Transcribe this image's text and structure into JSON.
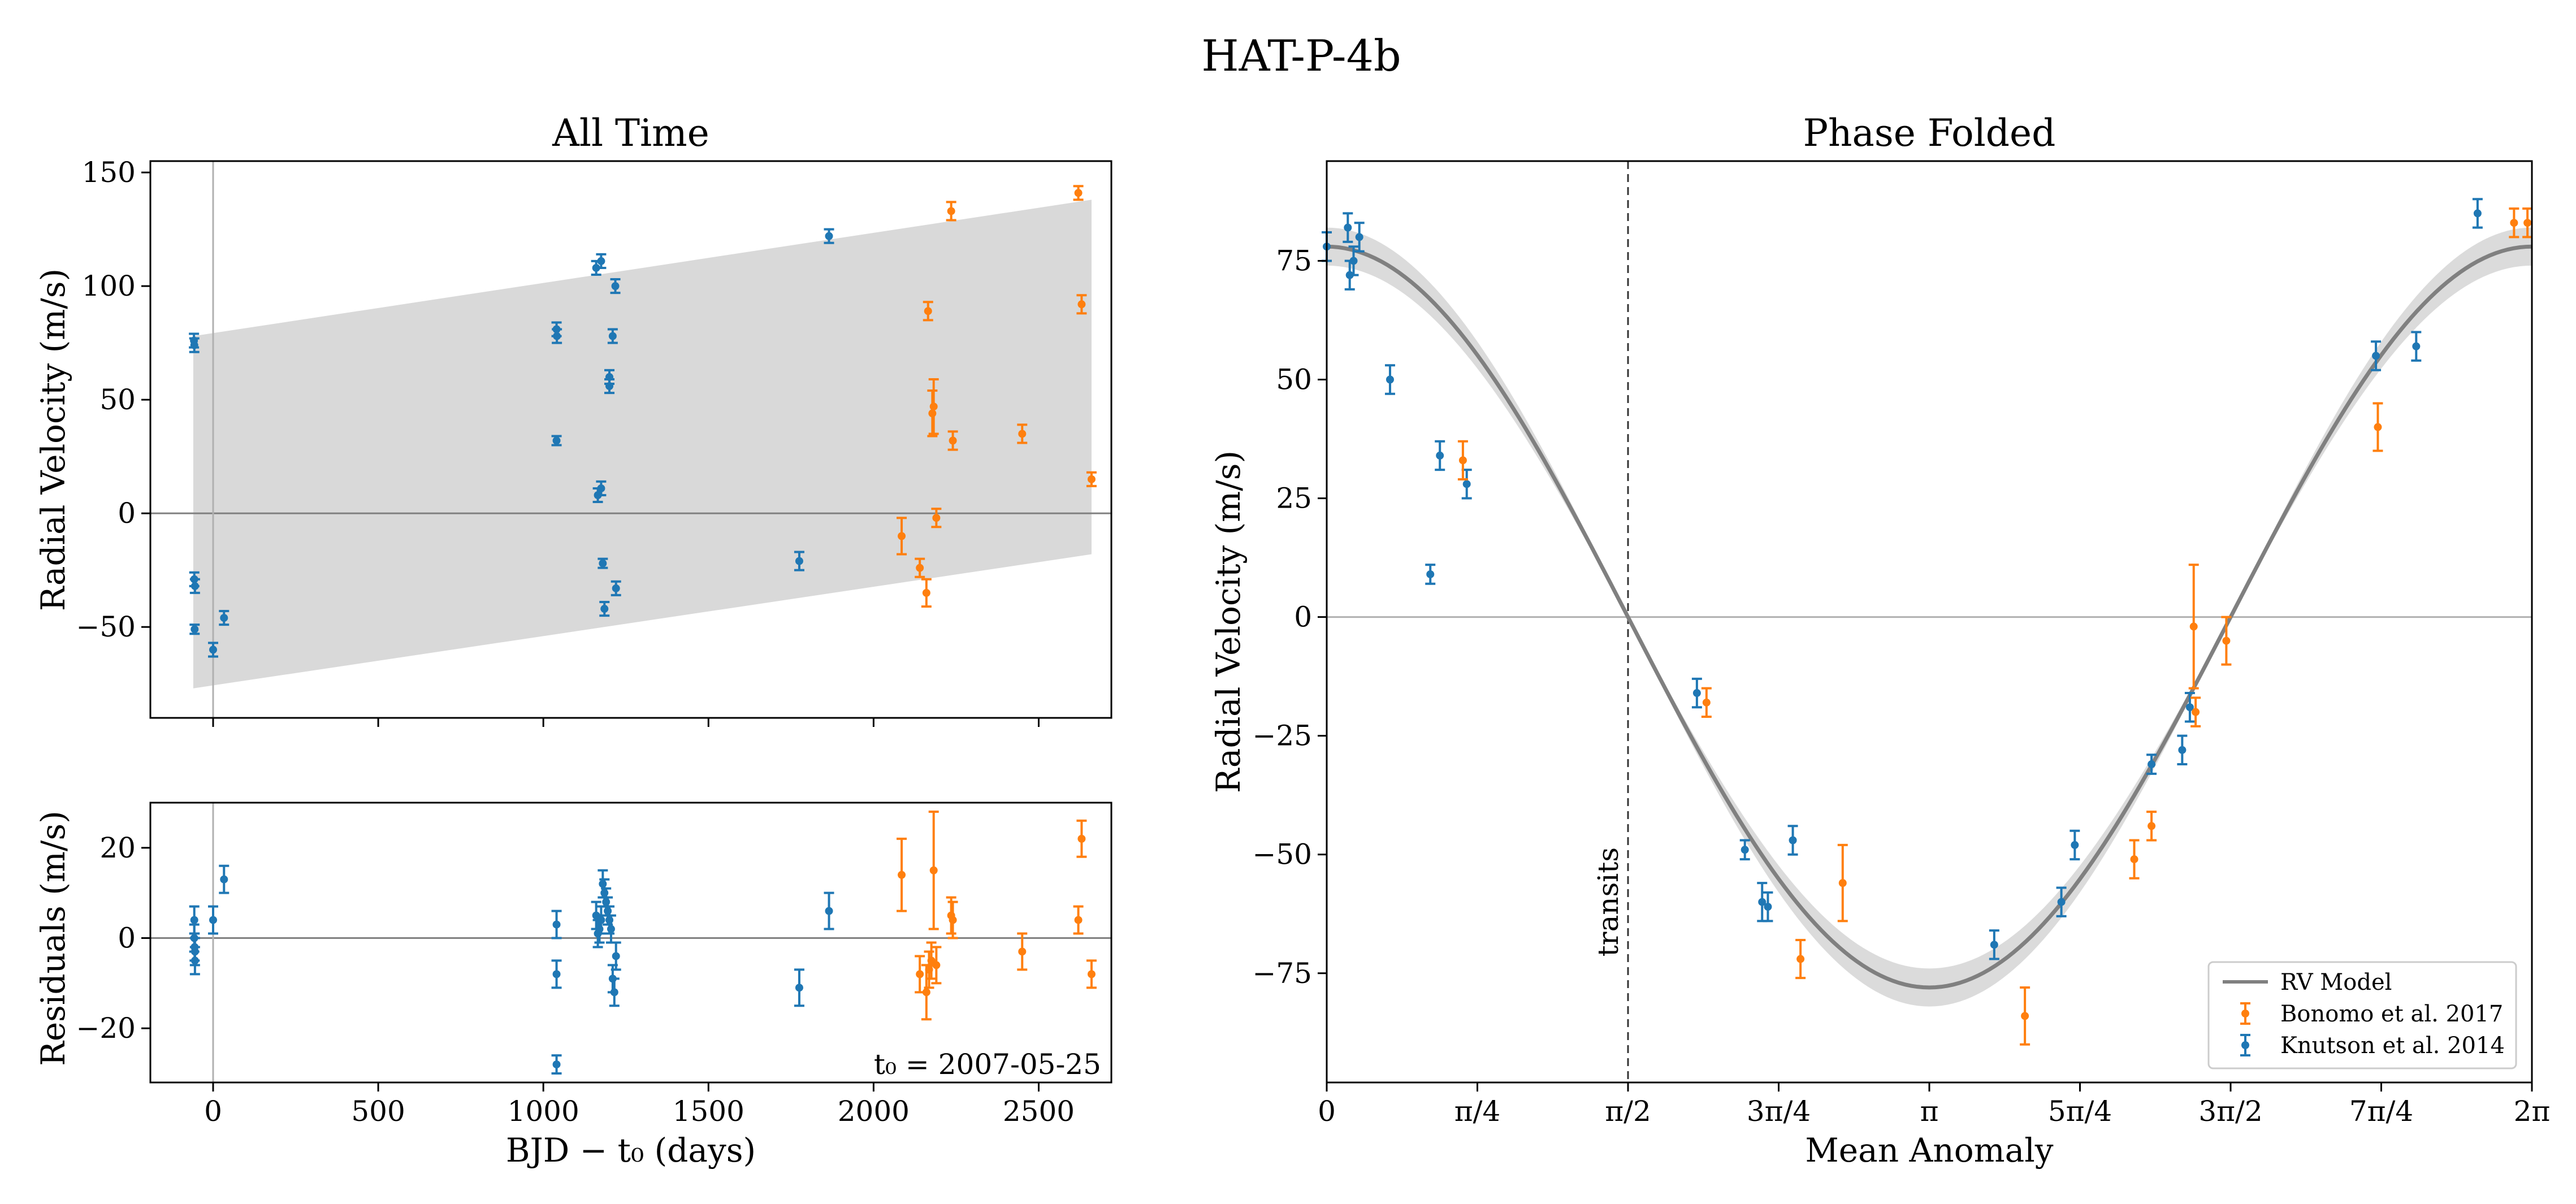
{
  "figure": {
    "suptitle": "HAT-P-4b",
    "colors": {
      "knutson": "#1f77b4",
      "bonomo": "#ff7f0e",
      "model": "#808080",
      "band": "#d9d9d9",
      "zero_line": "#808080"
    }
  },
  "chart_data": [
    {
      "id": "all_time",
      "type": "scatter",
      "title": "All Time",
      "xlabel": "",
      "ylabel": "Radial Velocity (m/s)",
      "xlim": [
        -190,
        2720
      ],
      "ylim": [
        -90,
        155
      ],
      "xticks": [
        0,
        500,
        1000,
        1500,
        2000,
        2500
      ],
      "yticks": [
        -50,
        0,
        50,
        100,
        150
      ],
      "ytick_labels": [
        "−50",
        "0",
        "50",
        "100",
        "150"
      ],
      "band": {
        "x": [
          -60,
          2660
        ],
        "upper": [
          78,
          138
        ],
        "lower": [
          -77,
          -18
        ]
      },
      "series": [
        {
          "name": "Knutson et al. 2014",
          "color": "#1f77b4",
          "points": [
            [
              -58,
              76,
              3
            ],
            [
              -57,
              74,
              3
            ],
            [
              -57,
              -29,
              3
            ],
            [
              -55,
              -32,
              3
            ],
            [
              -56,
              -51,
              2
            ],
            [
              0,
              -60,
              3
            ],
            [
              33,
              -46,
              3
            ],
            [
              1040,
              81,
              3
            ],
            [
              1041,
              78,
              3
            ],
            [
              1040,
              32,
              2
            ],
            [
              1160,
              108,
              3
            ],
            [
              1175,
              111,
              3
            ],
            [
              1165,
              8,
              3
            ],
            [
              1175,
              11,
              3
            ],
            [
              1180,
              -22,
              2
            ],
            [
              1185,
              -42,
              3
            ],
            [
              1200,
              56,
              3
            ],
            [
              1200,
              60,
              3
            ],
            [
              1210,
              78,
              3
            ],
            [
              1218,
              100,
              3
            ],
            [
              1220,
              -33,
              3
            ],
            [
              1775,
              -21,
              4
            ],
            [
              1865,
              122,
              3
            ]
          ]
        },
        {
          "name": "Bonomo et al. 2017",
          "color": "#ff7f0e",
          "points": [
            [
              2085,
              -10,
              8
            ],
            [
              2140,
              -24,
              4
            ],
            [
              2160,
              -35,
              6
            ],
            [
              2165,
              89,
              4
            ],
            [
              2178,
              44,
              10
            ],
            [
              2182,
              47,
              12
            ],
            [
              2190,
              -2,
              4
            ],
            [
              2235,
              133,
              4
            ],
            [
              2240,
              32,
              4
            ],
            [
              2450,
              35,
              4
            ],
            [
              2620,
              141,
              3
            ],
            [
              2630,
              92,
              4
            ],
            [
              2660,
              15,
              3
            ]
          ]
        }
      ]
    },
    {
      "id": "residuals",
      "type": "scatter",
      "title": "",
      "xlabel": "BJD − t₀ (days)",
      "ylabel": "Residuals (m/s)",
      "xlim": [
        -190,
        2720
      ],
      "ylim": [
        -32,
        30
      ],
      "xticks": [
        0,
        500,
        1000,
        1500,
        2000,
        2500
      ],
      "xtick_labels": [
        "0",
        "500",
        "1000",
        "1500",
        "2000",
        "2500"
      ],
      "yticks": [
        -20,
        0,
        20
      ],
      "ytick_labels": [
        "−20",
        "0",
        "20"
      ],
      "annotation": "t₀ = 2007-05-25",
      "series": [
        {
          "name": "Knutson et al. 2014",
          "color": "#1f77b4",
          "points": [
            [
              -57,
              4,
              3
            ],
            [
              -57,
              0,
              3
            ],
            [
              -56,
              -2,
              3
            ],
            [
              -55,
              -3,
              3
            ],
            [
              -55,
              -5,
              3
            ],
            [
              0,
              4,
              3
            ],
            [
              33,
              13,
              3
            ],
            [
              1040,
              3,
              3
            ],
            [
              1040,
              -8,
              3
            ],
            [
              1040,
              -28,
              2
            ],
            [
              1160,
              5,
              3
            ],
            [
              1165,
              1,
              3
            ],
            [
              1170,
              2,
              3
            ],
            [
              1175,
              4,
              3
            ],
            [
              1180,
              12,
              3
            ],
            [
              1185,
              10,
              3
            ],
            [
              1190,
              8,
              3
            ],
            [
              1195,
              6,
              3
            ],
            [
              1200,
              4,
              3
            ],
            [
              1205,
              2,
              3
            ],
            [
              1210,
              -9,
              3
            ],
            [
              1215,
              -12,
              3
            ],
            [
              1220,
              -4,
              3
            ],
            [
              1775,
              -11,
              4
            ],
            [
              1865,
              6,
              4
            ]
          ]
        },
        {
          "name": "Bonomo et al. 2017",
          "color": "#ff7f0e",
          "points": [
            [
              2085,
              14,
              8
            ],
            [
              2140,
              -8,
              4
            ],
            [
              2160,
              -12,
              6
            ],
            [
              2168,
              -7,
              4
            ],
            [
              2175,
              -5,
              4
            ],
            [
              2182,
              15,
              13
            ],
            [
              2190,
              -6,
              4
            ],
            [
              2235,
              5,
              4
            ],
            [
              2240,
              4,
              4
            ],
            [
              2450,
              -3,
              4
            ],
            [
              2620,
              4,
              3
            ],
            [
              2630,
              22,
              4
            ],
            [
              2660,
              -8,
              3
            ]
          ]
        }
      ]
    },
    {
      "id": "phase_folded",
      "type": "scatter",
      "title": "Phase Folded",
      "xlabel": "Mean Anomaly",
      "ylabel": "Radial Velocity (m/s)",
      "xlim": [
        0,
        6.2832
      ],
      "ylim": [
        -98,
        96
      ],
      "xticks": [
        0,
        0.7854,
        1.5708,
        2.3562,
        3.1416,
        3.927,
        4.7124,
        5.4978,
        6.2832
      ],
      "xtick_labels": [
        "0",
        "π/4",
        "π/2",
        "3π/4",
        "π",
        "5π/4",
        "3π/2",
        "7π/4",
        "2π"
      ],
      "yticks": [
        -75,
        -50,
        -25,
        0,
        25,
        50,
        75
      ],
      "ytick_labels": [
        "−75",
        "−50",
        "−25",
        "0",
        "25",
        "50",
        "75"
      ],
      "model": {
        "name": "RV Model",
        "amplitude": 78,
        "band": 4
      },
      "vline": {
        "x": 1.5708,
        "label": "transits"
      },
      "legend": {
        "loc": "lower-right",
        "entries": [
          "RV Model",
          "Bonomo et al. 2017",
          "Knutson et al. 2014"
        ]
      },
      "series": [
        {
          "name": "Knutson et al. 2014",
          "color": "#1f77b4",
          "points": [
            [
              0.0,
              78,
              3
            ],
            [
              0.11,
              82,
              3
            ],
            [
              0.12,
              72,
              3
            ],
            [
              0.14,
              75,
              3
            ],
            [
              0.17,
              80,
              3
            ],
            [
              0.33,
              50,
              3
            ],
            [
              0.54,
              9,
              2
            ],
            [
              0.59,
              34,
              3
            ],
            [
              0.73,
              28,
              3
            ],
            [
              1.93,
              -16,
              3
            ],
            [
              2.18,
              -49,
              2
            ],
            [
              2.27,
              -60,
              4
            ],
            [
              2.3,
              -61,
              3
            ],
            [
              2.43,
              -47,
              3
            ],
            [
              3.48,
              -69,
              3
            ],
            [
              3.83,
              -60,
              3
            ],
            [
              3.9,
              -48,
              3
            ],
            [
              4.3,
              -31,
              2
            ],
            [
              4.46,
              -28,
              3
            ],
            [
              4.5,
              -19,
              3
            ],
            [
              5.47,
              55,
              3
            ],
            [
              5.68,
              57,
              3
            ],
            [
              6.0,
              85,
              3
            ]
          ]
        },
        {
          "name": "Bonomo et al. 2017",
          "color": "#ff7f0e",
          "points": [
            [
              0.71,
              33,
              4
            ],
            [
              1.98,
              -18,
              3
            ],
            [
              2.47,
              -72,
              4
            ],
            [
              2.69,
              -56,
              8
            ],
            [
              3.64,
              -84,
              6
            ],
            [
              4.21,
              -51,
              4
            ],
            [
              4.3,
              -44,
              3
            ],
            [
              4.52,
              -2,
              13
            ],
            [
              4.53,
              -20,
              3
            ],
            [
              4.69,
              -5,
              5
            ],
            [
              5.48,
              40,
              5
            ],
            [
              6.19,
              83,
              3
            ],
            [
              6.26,
              83,
              3
            ]
          ]
        }
      ]
    }
  ]
}
